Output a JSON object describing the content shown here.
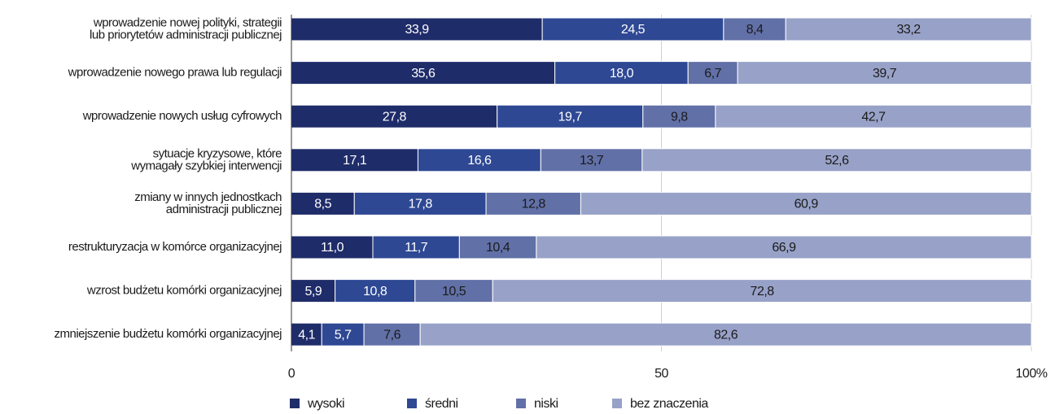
{
  "chart_data": {
    "type": "stacked-bar-horizontal",
    "categories": [
      "wprowadzenie nowej polityki, strategii\nlub priorytetów administracji publicznej",
      "wprowadzenie nowego prawa lub regulacji",
      "wprowadzenie nowych usług cyfrowych",
      "sytuacje kryzysowe, które\nwymagały szybkiej interwencji",
      "zmiany w innych jednostkach\nadministracji publicznej",
      "restrukturyzacja w komórce organizacyjnej",
      "wzrost budżetu komórki organizacyjnej",
      "zmniejszenie budżetu komórki organizacyjnej"
    ],
    "series": [
      {
        "name": "wysoki",
        "color": "#1f2c6a",
        "values": [
          33.9,
          35.6,
          27.8,
          17.1,
          8.5,
          11.0,
          5.9,
          4.1
        ],
        "value_labels": [
          "33,9",
          "35,6",
          "27,8",
          "17,1",
          "8,5",
          "11,0",
          "5,9",
          "4,1"
        ]
      },
      {
        "name": "średni",
        "color": "#2e4893",
        "values": [
          24.5,
          18.0,
          19.7,
          16.6,
          17.8,
          11.7,
          10.8,
          5.7
        ],
        "value_labels": [
          "24,5",
          "18,0",
          "19,7",
          "16,6",
          "17,8",
          "11,7",
          "10,8",
          "5,7"
        ]
      },
      {
        "name": "niski",
        "color": "#6170a7",
        "values": [
          8.4,
          6.7,
          9.8,
          13.7,
          12.8,
          10.4,
          10.5,
          7.6
        ],
        "value_labels": [
          "8,4",
          "6,7",
          "9,8",
          "13,7",
          "12,8",
          "10,4",
          "10,5",
          "7,6"
        ]
      },
      {
        "name": "bez znaczenia",
        "color": "#98a2c8",
        "values": [
          33.2,
          39.7,
          42.7,
          52.6,
          60.9,
          66.9,
          72.8,
          82.6
        ],
        "value_labels": [
          "33,2",
          "39,7",
          "42,7",
          "52,6",
          "60,9",
          "66,9",
          "72,8",
          "82,6"
        ]
      }
    ],
    "xlim": [
      0,
      100
    ],
    "xticks": [
      0,
      50,
      {
        "value": 100,
        "label": "100%"
      }
    ],
    "grid": true
  }
}
